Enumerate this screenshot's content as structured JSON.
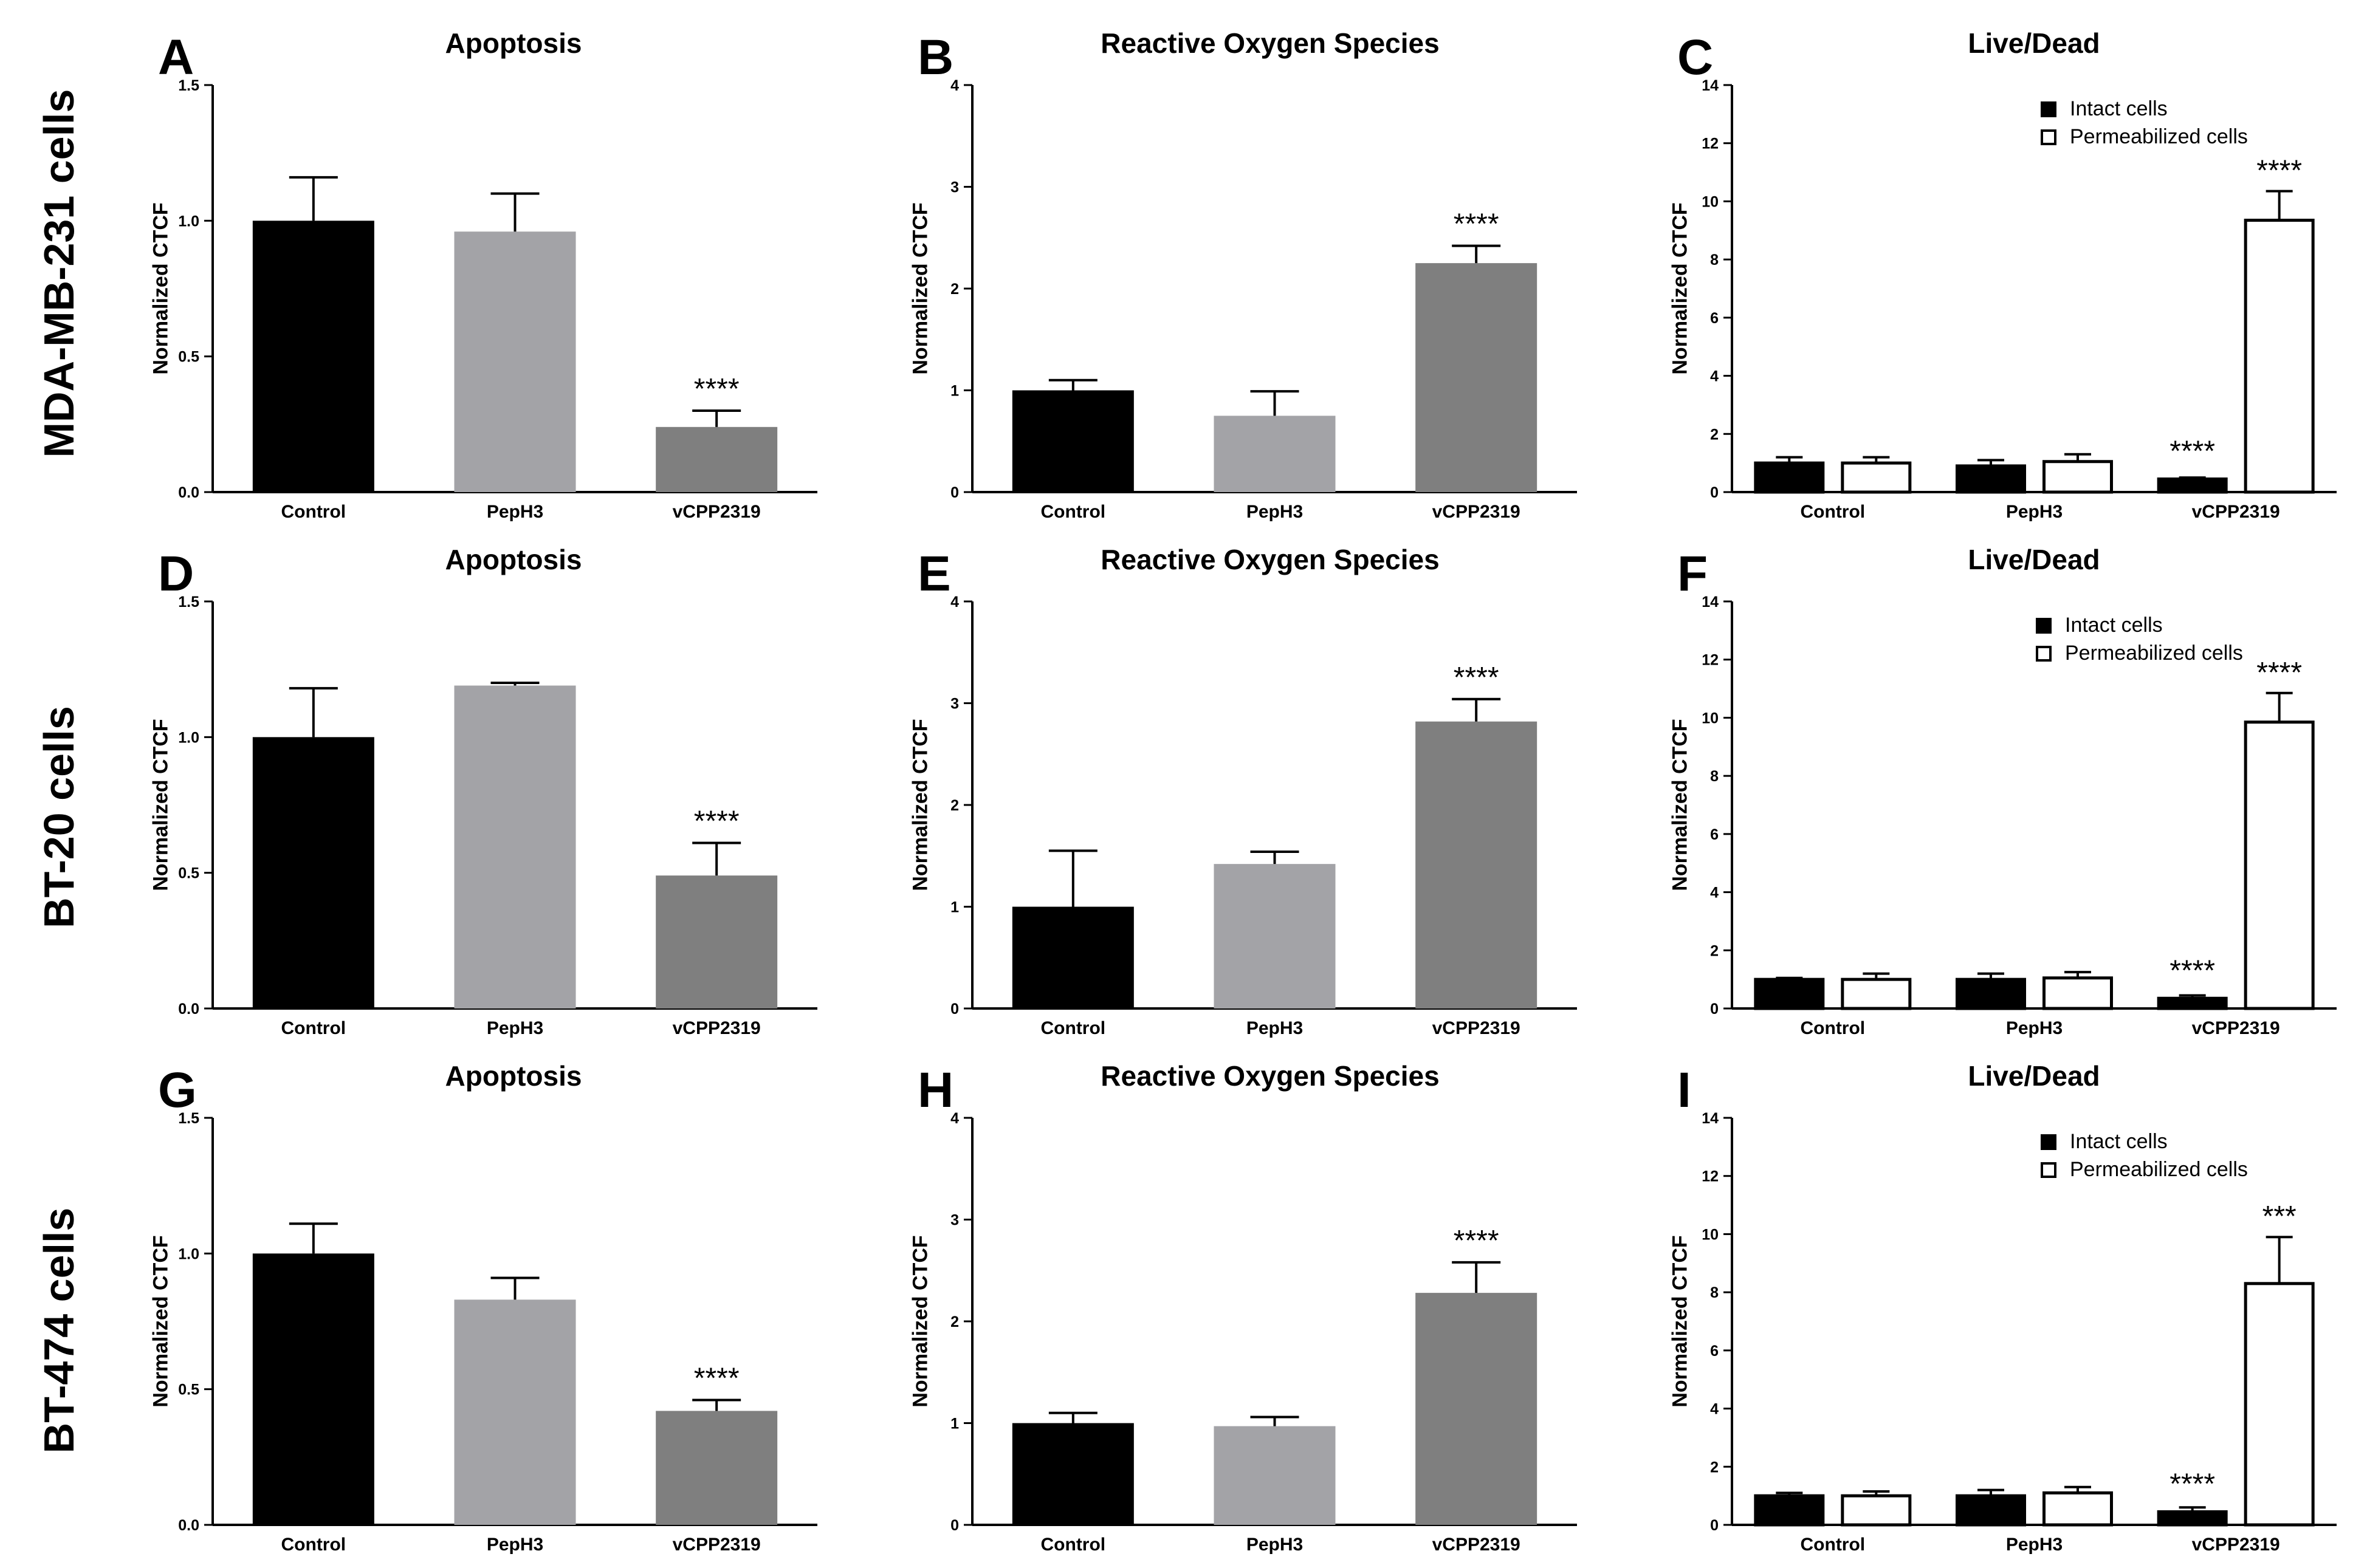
{
  "row_labels": [
    "MDA-MB-231 cells",
    "BT-20 cells",
    "BT-474 cells"
  ],
  "chart_data": [
    {
      "panel": "A",
      "type": "bar",
      "title": "Apoptosis",
      "ylabel": "Normalized CTCF",
      "categories": [
        "Control",
        "PepH3",
        "vCPP2319"
      ],
      "yticks": [
        "0.0",
        "0.5",
        "1.0",
        "1.5"
      ],
      "ylim": [
        0,
        1.5
      ],
      "series": [
        {
          "values": [
            1.0,
            0.96,
            0.24
          ],
          "errors": [
            0.16,
            0.14,
            0.06
          ]
        }
      ],
      "annotations": [
        "",
        "",
        "****"
      ],
      "colors": [
        "#000000",
        "#a3a3a7",
        "#7f7f7f"
      ]
    },
    {
      "panel": "B",
      "type": "bar",
      "title": "Reactive Oxygen Species",
      "ylabel": "Normalized CTCF",
      "categories": [
        "Control",
        "PepH3",
        "vCPP2319"
      ],
      "yticks": [
        "0",
        "1",
        "2",
        "3",
        "4"
      ],
      "ylim": [
        0,
        4
      ],
      "series": [
        {
          "values": [
            1.0,
            0.75,
            2.25
          ],
          "errors": [
            0.1,
            0.24,
            0.17
          ]
        }
      ],
      "annotations": [
        "",
        "",
        "****"
      ],
      "colors": [
        "#000000",
        "#a3a3a7",
        "#7f7f7f"
      ]
    },
    {
      "panel": "C",
      "type": "bar",
      "title": "Live/Dead",
      "ylabel": "Normalized CTCF",
      "categories": [
        "Control",
        "PepH3",
        "vCPP2319"
      ],
      "yticks": [
        "0",
        "2",
        "4",
        "6",
        "8",
        "10",
        "12",
        "14"
      ],
      "ylim": [
        0,
        14
      ],
      "series": [
        {
          "name": "Intact cells",
          "values": [
            1.0,
            0.9,
            0.45
          ],
          "errors": [
            0.2,
            0.2,
            0.05
          ]
        },
        {
          "name": "Permeabilized cells",
          "values": [
            1.0,
            1.05,
            9.35
          ],
          "errors": [
            0.2,
            0.25,
            1.0
          ]
        }
      ],
      "annotations": [
        [
          "",
          "",
          ""
        ],
        [
          "",
          "",
          "****"
        ]
      ],
      "annotation_under": [
        "",
        "",
        "****"
      ]
    },
    {
      "panel": "D",
      "type": "bar",
      "title": "Apoptosis",
      "ylabel": "Normalized CTCF",
      "categories": [
        "Control",
        "PepH3",
        "vCPP2319"
      ],
      "yticks": [
        "0.0",
        "0.5",
        "1.0",
        "1.5"
      ],
      "ylim": [
        0,
        1.5
      ],
      "series": [
        {
          "values": [
            1.0,
            1.19,
            0.49
          ],
          "errors": [
            0.18,
            0.01,
            0.12
          ]
        }
      ],
      "annotations": [
        "",
        "",
        "****"
      ],
      "colors": [
        "#000000",
        "#a3a3a7",
        "#7f7f7f"
      ]
    },
    {
      "panel": "E",
      "type": "bar",
      "title": "Reactive Oxygen Species",
      "ylabel": "Normalized CTCF",
      "categories": [
        "Control",
        "PepH3",
        "vCPP2319"
      ],
      "yticks": [
        "0",
        "1",
        "2",
        "3",
        "4"
      ],
      "ylim": [
        0,
        4
      ],
      "series": [
        {
          "values": [
            1.0,
            1.42,
            2.82
          ],
          "errors": [
            0.55,
            0.12,
            0.22
          ]
        }
      ],
      "annotations": [
        "",
        "",
        "****"
      ],
      "colors": [
        "#000000",
        "#a3a3a7",
        "#7f7f7f"
      ]
    },
    {
      "panel": "F",
      "type": "bar",
      "title": "Live/Dead",
      "ylabel": "Normalized CTCF",
      "categories": [
        "Control",
        "PepH3",
        "vCPP2319"
      ],
      "yticks": [
        "0",
        "2",
        "4",
        "6",
        "8",
        "10",
        "12",
        "14"
      ],
      "ylim": [
        0,
        14
      ],
      "series": [
        {
          "name": "Intact cells",
          "values": [
            1.0,
            1.0,
            0.35
          ],
          "errors": [
            0.05,
            0.2,
            0.1
          ]
        },
        {
          "name": "Permeabilized cells",
          "values": [
            1.0,
            1.05,
            9.85
          ],
          "errors": [
            0.2,
            0.2,
            1.0
          ]
        }
      ],
      "annotations": [
        [
          "",
          "",
          ""
        ],
        [
          "",
          "",
          "****"
        ]
      ],
      "annotation_under": [
        "",
        "",
        "****"
      ]
    },
    {
      "panel": "G",
      "type": "bar",
      "title": "Apoptosis",
      "ylabel": "Normalized CTCF",
      "categories": [
        "Control",
        "PepH3",
        "vCPP2319"
      ],
      "yticks": [
        "0.0",
        "0.5",
        "1.0",
        "1.5"
      ],
      "ylim": [
        0,
        1.5
      ],
      "series": [
        {
          "values": [
            1.0,
            0.83,
            0.42
          ],
          "errors": [
            0.11,
            0.08,
            0.04
          ]
        }
      ],
      "annotations": [
        "",
        "",
        "****"
      ],
      "colors": [
        "#000000",
        "#a3a3a7",
        "#7f7f7f"
      ]
    },
    {
      "panel": "H",
      "type": "bar",
      "title": "Reactive Oxygen Species",
      "ylabel": "Normalized CTCF",
      "categories": [
        "Control",
        "PepH3",
        "vCPP2319"
      ],
      "yticks": [
        "0",
        "1",
        "2",
        "3",
        "4"
      ],
      "ylim": [
        0,
        4
      ],
      "series": [
        {
          "values": [
            1.0,
            0.97,
            2.28
          ],
          "errors": [
            0.1,
            0.09,
            0.3
          ]
        }
      ],
      "annotations": [
        "",
        "",
        "****"
      ],
      "colors": [
        "#000000",
        "#a3a3a7",
        "#7f7f7f"
      ]
    },
    {
      "panel": "I",
      "type": "bar",
      "title": "Live/Dead",
      "ylabel": "Normalized CTCF",
      "categories": [
        "Control",
        "PepH3",
        "vCPP2319"
      ],
      "yticks": [
        "0",
        "2",
        "4",
        "6",
        "8",
        "10",
        "12",
        "14"
      ],
      "ylim": [
        0,
        14
      ],
      "series": [
        {
          "name": "Intact cells",
          "values": [
            1.0,
            1.0,
            0.45
          ],
          "errors": [
            0.1,
            0.2,
            0.15
          ]
        },
        {
          "name": "Permeabilized cells",
          "values": [
            1.0,
            1.1,
            8.3
          ],
          "errors": [
            0.15,
            0.2,
            1.6
          ]
        }
      ],
      "annotations": [
        [
          "",
          "",
          ""
        ],
        [
          "",
          "",
          "***"
        ]
      ],
      "annotation_under": [
        "",
        "",
        "****"
      ]
    }
  ]
}
